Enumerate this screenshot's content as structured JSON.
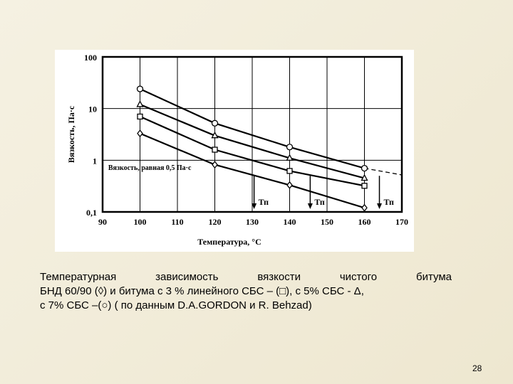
{
  "caption": {
    "line1": [
      "Температурная",
      "зависимость",
      "вязкости",
      "чистого",
      "битума"
    ],
    "line2": "БНД 60/90 (◊) и битума с 3 % линейного СБС – (□), с 5% СБС - Δ,",
    "line3": "с 7% СБС –(○) ( по данным D.A.GORDON и R. Behzad)"
  },
  "page_number": "28",
  "chart_data": {
    "type": "line",
    "xlabel": "Температура, °С",
    "ylabel": "Вязкость, Па·с",
    "xlim": [
      90,
      170
    ],
    "ylim": [
      0.1,
      100
    ],
    "y_scale": "log",
    "x_ticks": [
      "90",
      "100",
      "110",
      "120",
      "130",
      "140",
      "150",
      "160",
      "170"
    ],
    "y_ticks": [
      {
        "value": 100,
        "label": "100"
      },
      {
        "value": 10,
        "label": "10"
      },
      {
        "value": 1,
        "label": "1"
      },
      {
        "value": 0.1,
        "label": "0,1"
      }
    ],
    "grid": true,
    "series": [
      {
        "marker": "circle",
        "x": [
          100,
          120,
          140,
          160
        ],
        "y": [
          24,
          5.2,
          1.8,
          0.7
        ],
        "extrapolated_to": {
          "x": 170,
          "y": 0.52
        }
      },
      {
        "marker": "triangle",
        "x": [
          100,
          120,
          140,
          160
        ],
        "y": [
          12,
          3.0,
          1.1,
          0.45
        ]
      },
      {
        "marker": "square",
        "x": [
          100,
          120,
          140,
          160
        ],
        "y": [
          7,
          1.6,
          0.62,
          0.32
        ]
      },
      {
        "marker": "diamond",
        "x": [
          100,
          120,
          140,
          160
        ],
        "y": [
          3.3,
          0.82,
          0.33,
          0.12
        ]
      }
    ],
    "reference_line": {
      "y": 0.5,
      "label": "Вязкость, равная 0,5 Па·с"
    },
    "annotations": [
      {
        "label": "Тп",
        "x": 130.5
      },
      {
        "label": "Тп",
        "x": 145.5
      },
      {
        "label": "Тп",
        "x": 164
      }
    ]
  }
}
